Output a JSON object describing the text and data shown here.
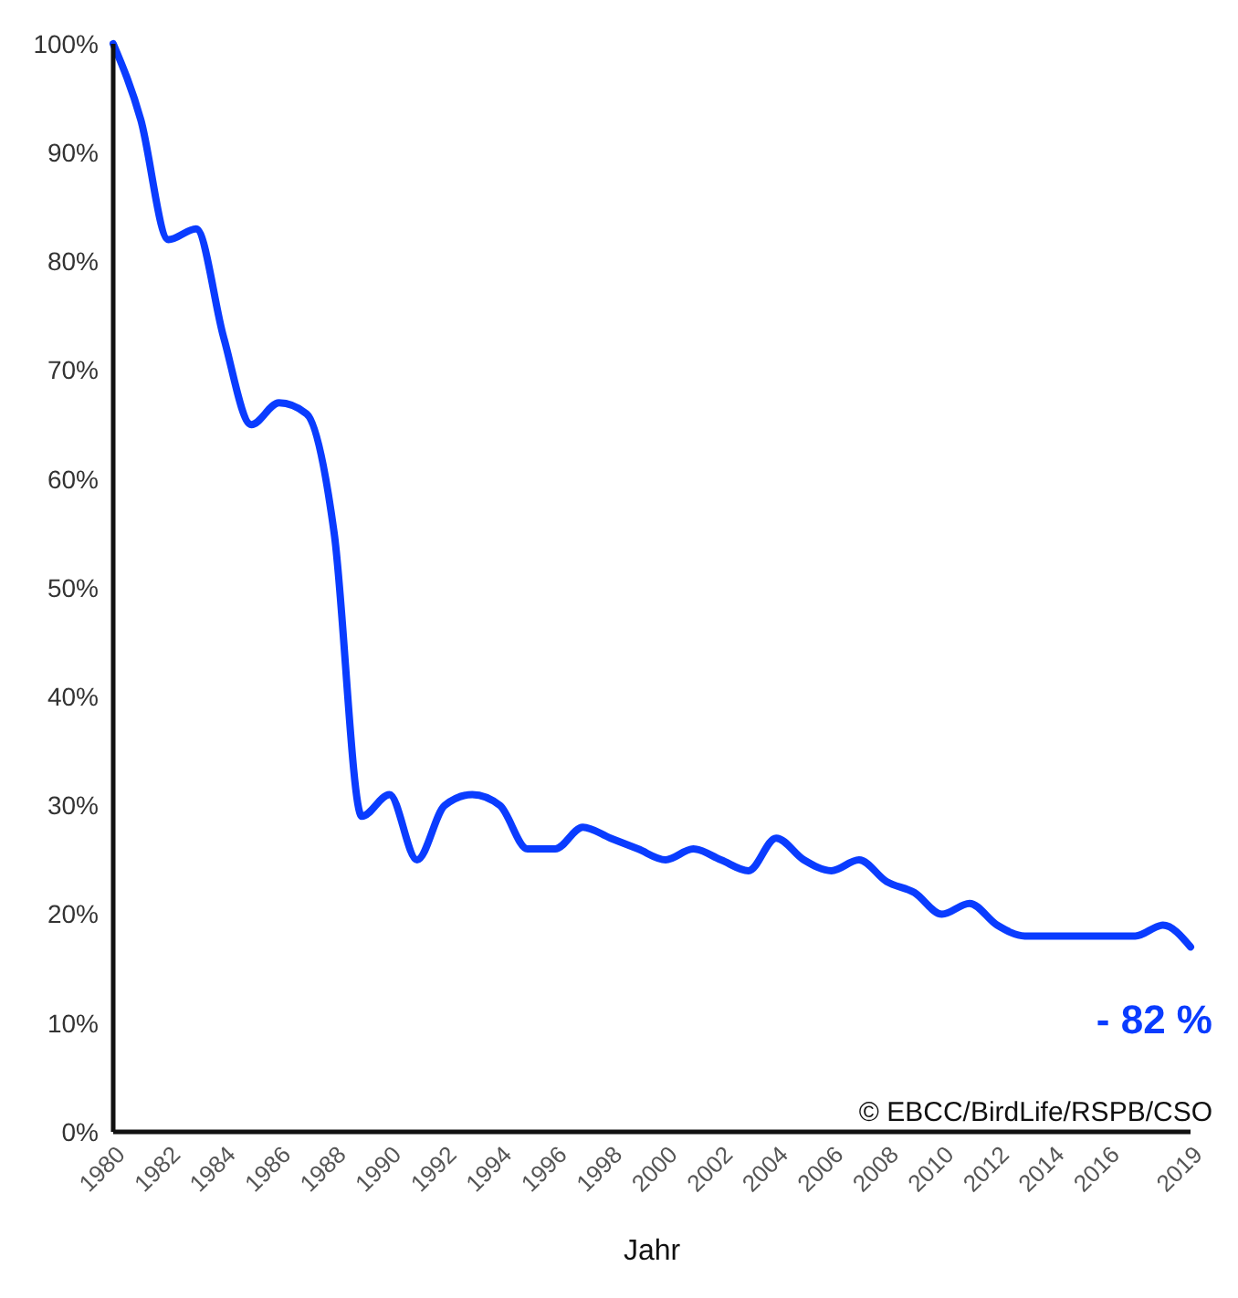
{
  "chart_data": {
    "type": "line",
    "xlabel": "Jahr",
    "x": [
      1980,
      1981,
      1982,
      1983,
      1984,
      1985,
      1986,
      1987,
      1988,
      1989,
      1990,
      1991,
      1992,
      1993,
      1994,
      1995,
      1996,
      1997,
      1998,
      1999,
      2000,
      2001,
      2002,
      2003,
      2004,
      2005,
      2006,
      2007,
      2008,
      2009,
      2010,
      2011,
      2012,
      2013,
      2014,
      2015,
      2016,
      2017,
      2018,
      2019
    ],
    "series": [
      {
        "color": "#0a3cff",
        "values": [
          100,
          93,
          82,
          83,
          73,
          65,
          67,
          66,
          55,
          29,
          31,
          25,
          30,
          31,
          30,
          26,
          26,
          28,
          27,
          26,
          25,
          26,
          25,
          24,
          27,
          25,
          24,
          25,
          23,
          22,
          20,
          21,
          19,
          18,
          18,
          18,
          18,
          18,
          19,
          17
        ]
      }
    ],
    "xlim": [
      1980,
      2019
    ],
    "xticks": [
      1980,
      1982,
      1984,
      1986,
      1988,
      1990,
      1992,
      1994,
      1996,
      1998,
      2000,
      2002,
      2004,
      2006,
      2008,
      2010,
      2012,
      2014,
      2016,
      2019
    ],
    "ylim": [
      0,
      100
    ],
    "yticks": [
      {
        "value": 0,
        "label": "0%"
      },
      {
        "value": 10,
        "label": "10%"
      },
      {
        "value": 20,
        "label": "20%"
      },
      {
        "value": 30,
        "label": "30%"
      },
      {
        "value": 40,
        "label": "40%"
      },
      {
        "value": 50,
        "label": "50%"
      },
      {
        "value": 60,
        "label": "60%"
      },
      {
        "value": 70,
        "label": "70%"
      },
      {
        "value": 80,
        "label": "80%"
      },
      {
        "value": 90,
        "label": "90%"
      },
      {
        "value": 100,
        "label": "100%"
      }
    ],
    "annotations": [
      "- 82 %",
      "© EBCC/BirdLife/RSPB/CSO"
    ],
    "grid": false,
    "marker": "none",
    "line_style": "solid"
  }
}
